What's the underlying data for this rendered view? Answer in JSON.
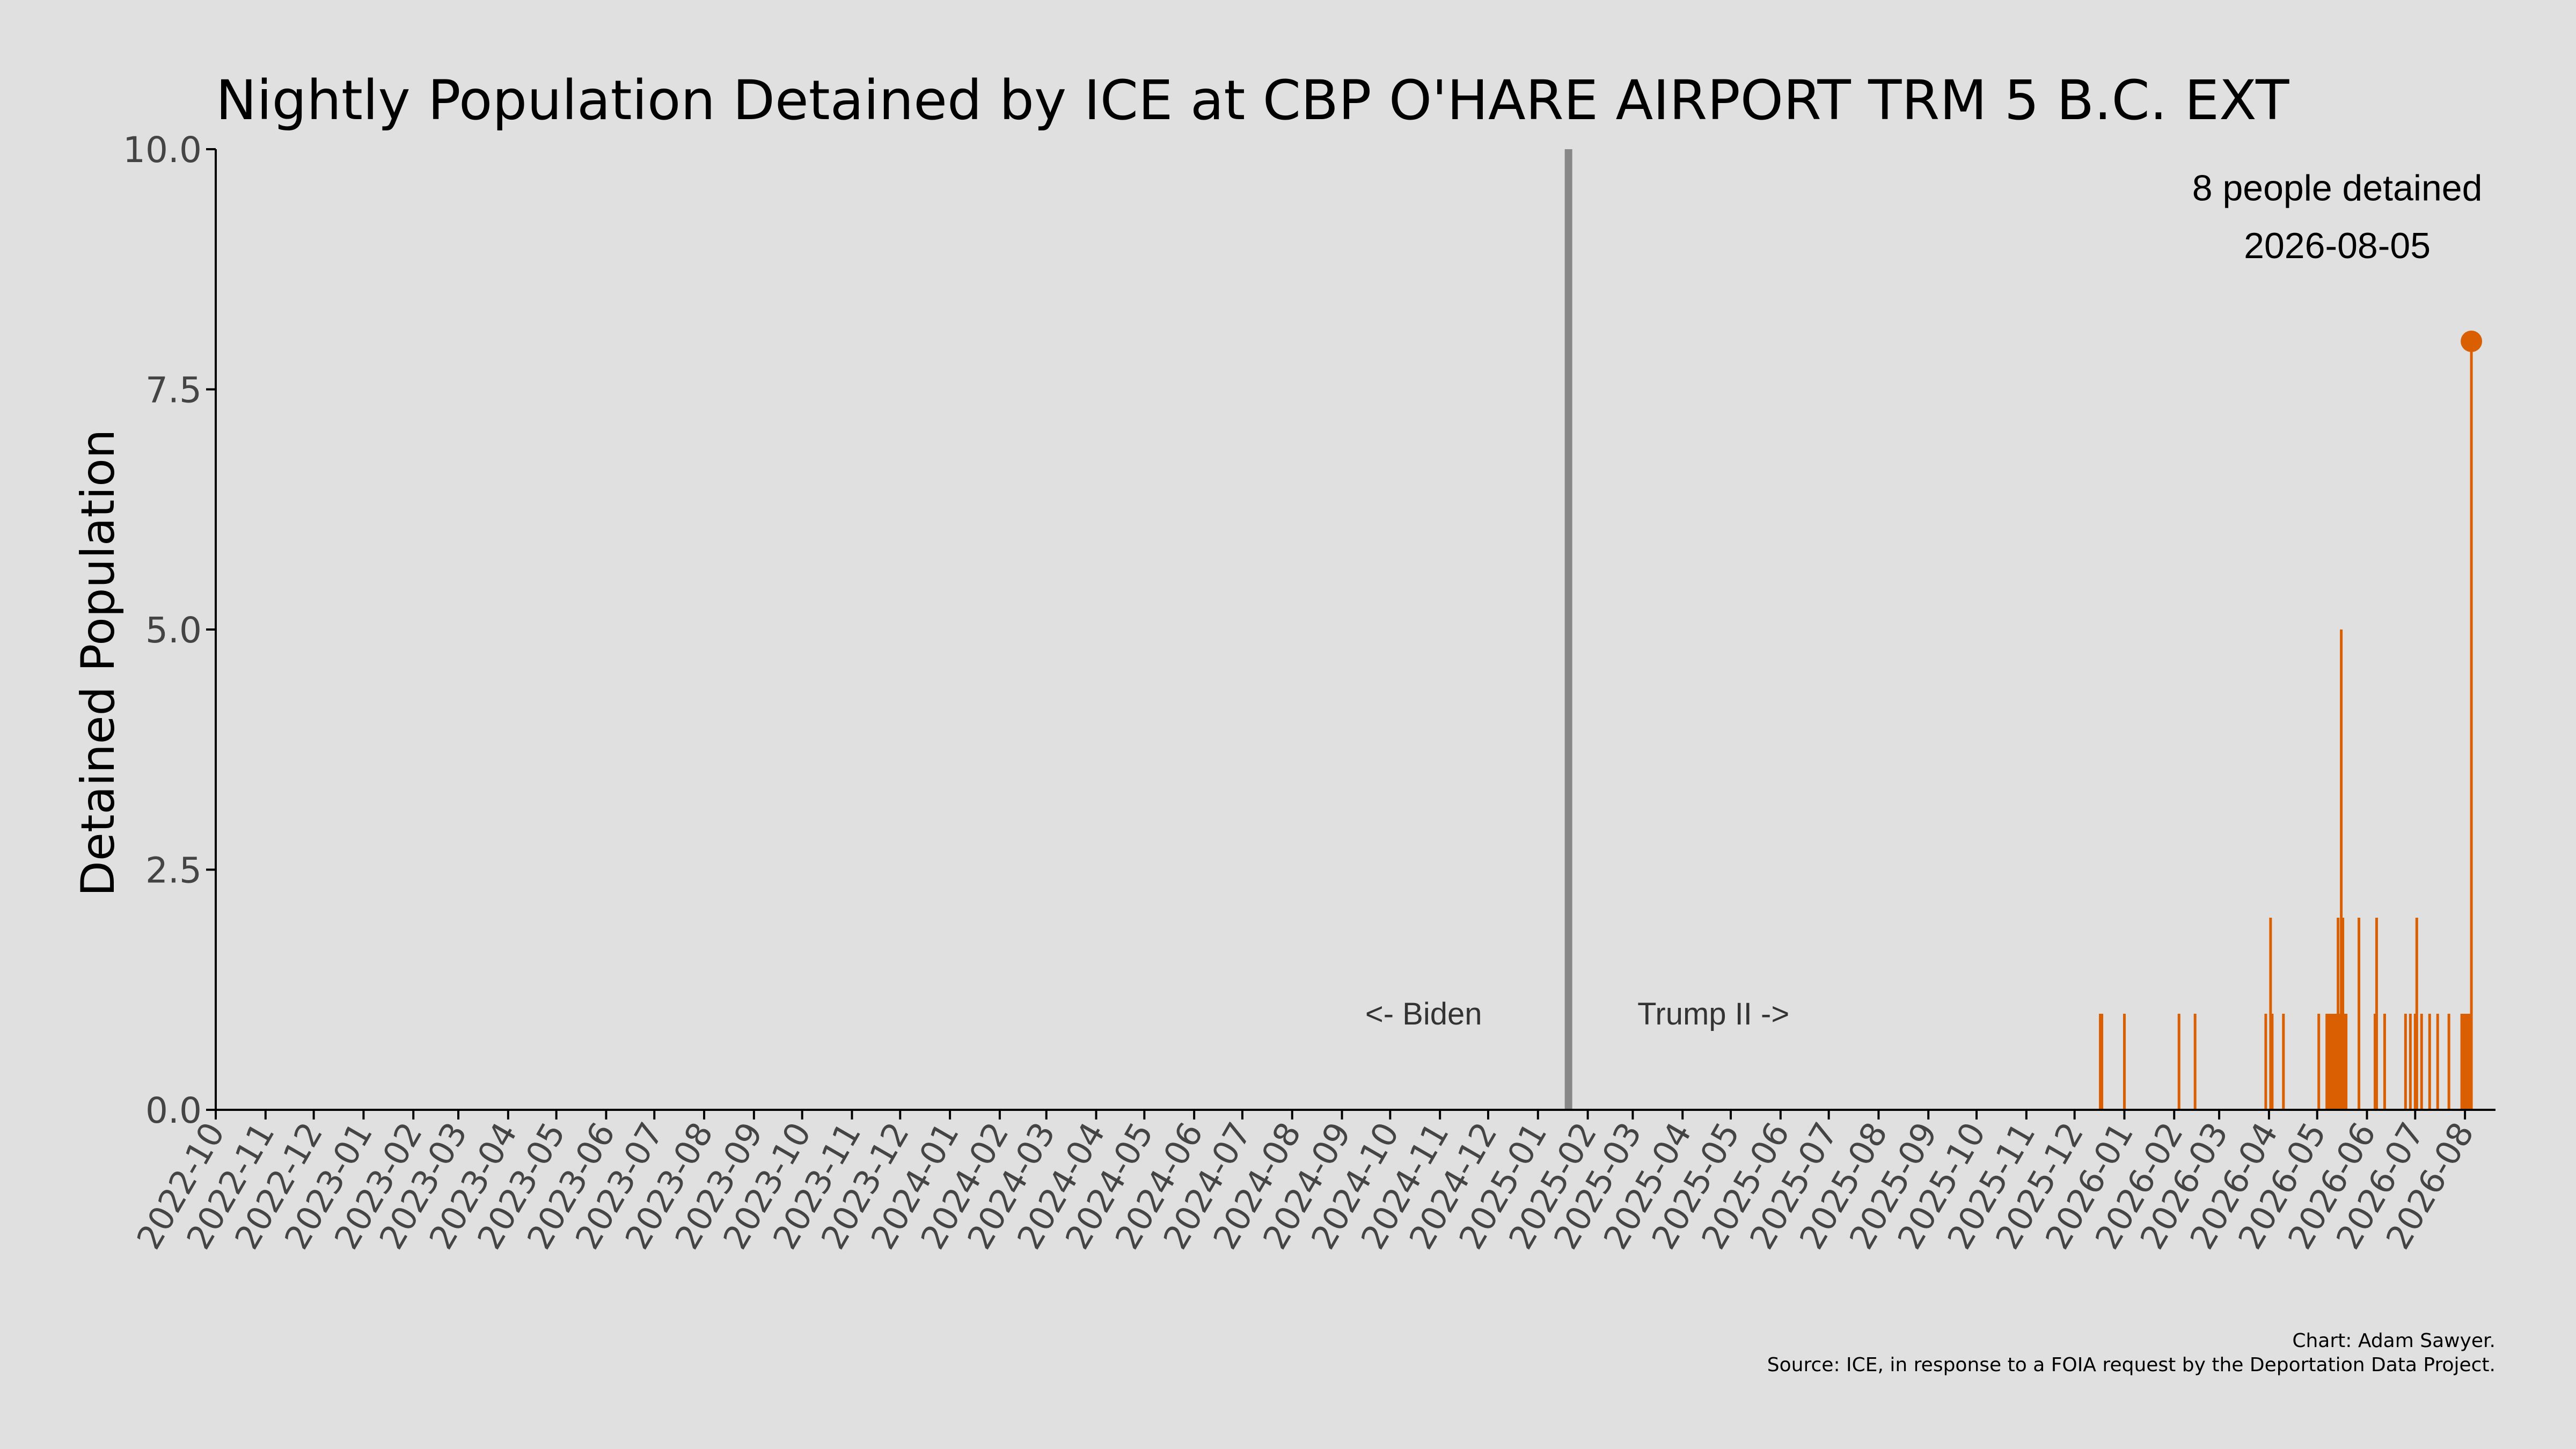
{
  "chart_data": {
    "type": "bar",
    "title": "Nightly Population Detained by ICE at CBP O'HARE AIRPORT TRM 5 B.C. EXT",
    "ylabel": "Detained Population",
    "xlabel": "",
    "ylim": [
      0,
      10
    ],
    "yticks": [
      "0.0",
      "2.5",
      "5.0",
      "7.5",
      "10.0"
    ],
    "xlim": [
      "2022-10-01",
      "2026-08-20"
    ],
    "xticks": [
      "2022-10",
      "2022-11",
      "2022-12",
      "2023-01",
      "2023-02",
      "2023-03",
      "2023-04",
      "2023-05",
      "2023-06",
      "2023-07",
      "2023-08",
      "2023-09",
      "2023-10",
      "2023-11",
      "2023-12",
      "2024-01",
      "2024-02",
      "2024-03",
      "2024-04",
      "2024-05",
      "2024-06",
      "2024-07",
      "2024-08",
      "2024-09",
      "2024-10",
      "2024-11",
      "2024-12",
      "2025-01",
      "2025-02",
      "2025-03",
      "2025-04",
      "2025-05",
      "2025-06",
      "2025-07",
      "2025-08",
      "2025-09",
      "2025-10",
      "2025-11",
      "2025-12",
      "2026-01",
      "2026-02",
      "2026-03",
      "2026-04",
      "2026-05",
      "2026-06",
      "2026-07",
      "2026-08"
    ],
    "grid": false,
    "bar_color": "#d95f02",
    "series": [
      {
        "x": [
          "2025-12-17",
          "2025-12-18",
          "2026-01-01",
          "2026-02-04",
          "2026-02-14",
          "2026-03-30",
          "2026-04-02",
          "2026-04-03",
          "2026-04-10",
          "2026-05-02",
          "2026-05-07",
          "2026-05-08",
          "2026-05-09",
          "2026-05-10",
          "2026-05-11",
          "2026-05-12",
          "2026-05-13",
          "2026-05-14",
          "2026-05-15",
          "2026-05-16",
          "2026-05-17",
          "2026-05-18",
          "2026-05-19",
          "2026-05-27",
          "2026-06-06",
          "2026-06-07",
          "2026-06-12",
          "2026-06-25",
          "2026-06-28",
          "2026-07-01",
          "2026-07-02",
          "2026-07-05",
          "2026-07-10",
          "2026-07-15",
          "2026-07-22",
          "2026-07-30",
          "2026-07-31",
          "2026-08-01",
          "2026-08-02",
          "2026-08-03",
          "2026-08-04",
          "2026-08-05"
        ],
        "values": [
          1,
          1,
          1,
          1,
          1,
          1,
          2,
          1,
          1,
          1,
          1,
          1,
          1,
          1,
          1,
          1,
          1,
          2,
          1,
          5,
          2,
          1,
          1,
          2,
          1,
          2,
          1,
          1,
          1,
          1,
          2,
          1,
          1,
          1,
          1,
          1,
          1,
          1,
          1,
          1,
          1,
          8
        ]
      }
    ],
    "highlight": {
      "date": "2026-08-05",
      "value": 8,
      "color": "#d95f02"
    },
    "divider": {
      "date": "2025-01-20",
      "color": "#888888"
    },
    "era_labels": {
      "left": "<- Biden",
      "right": "Trump II ->"
    },
    "callout": {
      "line1": "8 people detained",
      "line2": "2026-08-05"
    }
  },
  "credits": {
    "line1": "Chart: Adam Sawyer.",
    "line2": "Source: ICE, in response to a FOIA request by the Deportation Data Project."
  }
}
